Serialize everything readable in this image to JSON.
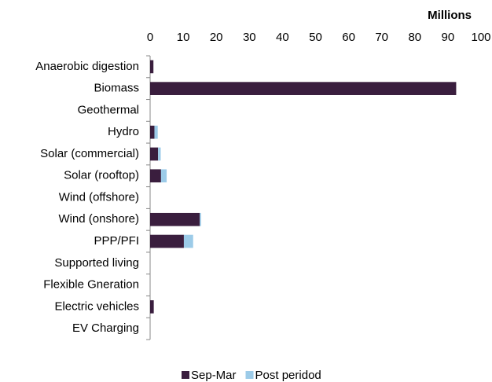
{
  "chart_data": {
    "type": "bar",
    "orientation": "horizontal",
    "stacked": true,
    "x_label": "Millions",
    "categories": [
      "Anaerobic digestion",
      "Biomass",
      "Geothermal",
      "Hydro",
      "Solar (commercial)",
      "Solar (rooftop)",
      "Wind (offshore)",
      "Wind (onshore)",
      "PPP/PFI",
      "Supported living",
      "Flexible Gneration",
      "Electric vehicles",
      "EV Charging"
    ],
    "series": [
      {
        "name": "Sep-Mar",
        "color": "#3a1e3e",
        "values": [
          1,
          92.5,
          0,
          1.3,
          2.4,
          3.3,
          0,
          15,
          10.2,
          0,
          0,
          1.1,
          0
        ]
      },
      {
        "name": "Post peridod",
        "color": "#9ccbe8",
        "values": [
          0,
          0,
          0,
          1,
          0.8,
          1.7,
          0,
          0.4,
          2.8,
          0,
          0,
          0,
          0
        ]
      }
    ],
    "xlim": [
      0,
      100
    ],
    "xticks": [
      0,
      10,
      20,
      30,
      40,
      50,
      60,
      70,
      80,
      90,
      100
    ],
    "grid": false,
    "legend": "bottom"
  }
}
